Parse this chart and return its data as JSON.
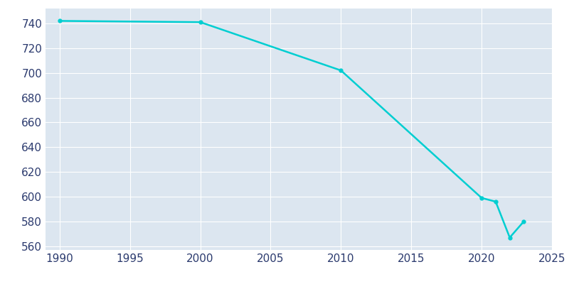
{
  "years": [
    1990,
    2000,
    2010,
    2020,
    2021,
    2022,
    2023
  ],
  "population": [
    742,
    741,
    702,
    599,
    596,
    567,
    580
  ],
  "line_color": "#00CED1",
  "background_color": "#ffffff",
  "plot_bg_color": "#dce6f0",
  "xlim": [
    1989,
    2025
  ],
  "ylim": [
    557,
    752
  ],
  "xticks": [
    1990,
    1995,
    2000,
    2005,
    2010,
    2015,
    2020,
    2025
  ],
  "yticks": [
    560,
    580,
    600,
    620,
    640,
    660,
    680,
    700,
    720,
    740
  ],
  "grid_color": "#ffffff",
  "tick_label_color": "#2b3a6e",
  "tick_label_fontsize": 11,
  "line_width": 1.8
}
